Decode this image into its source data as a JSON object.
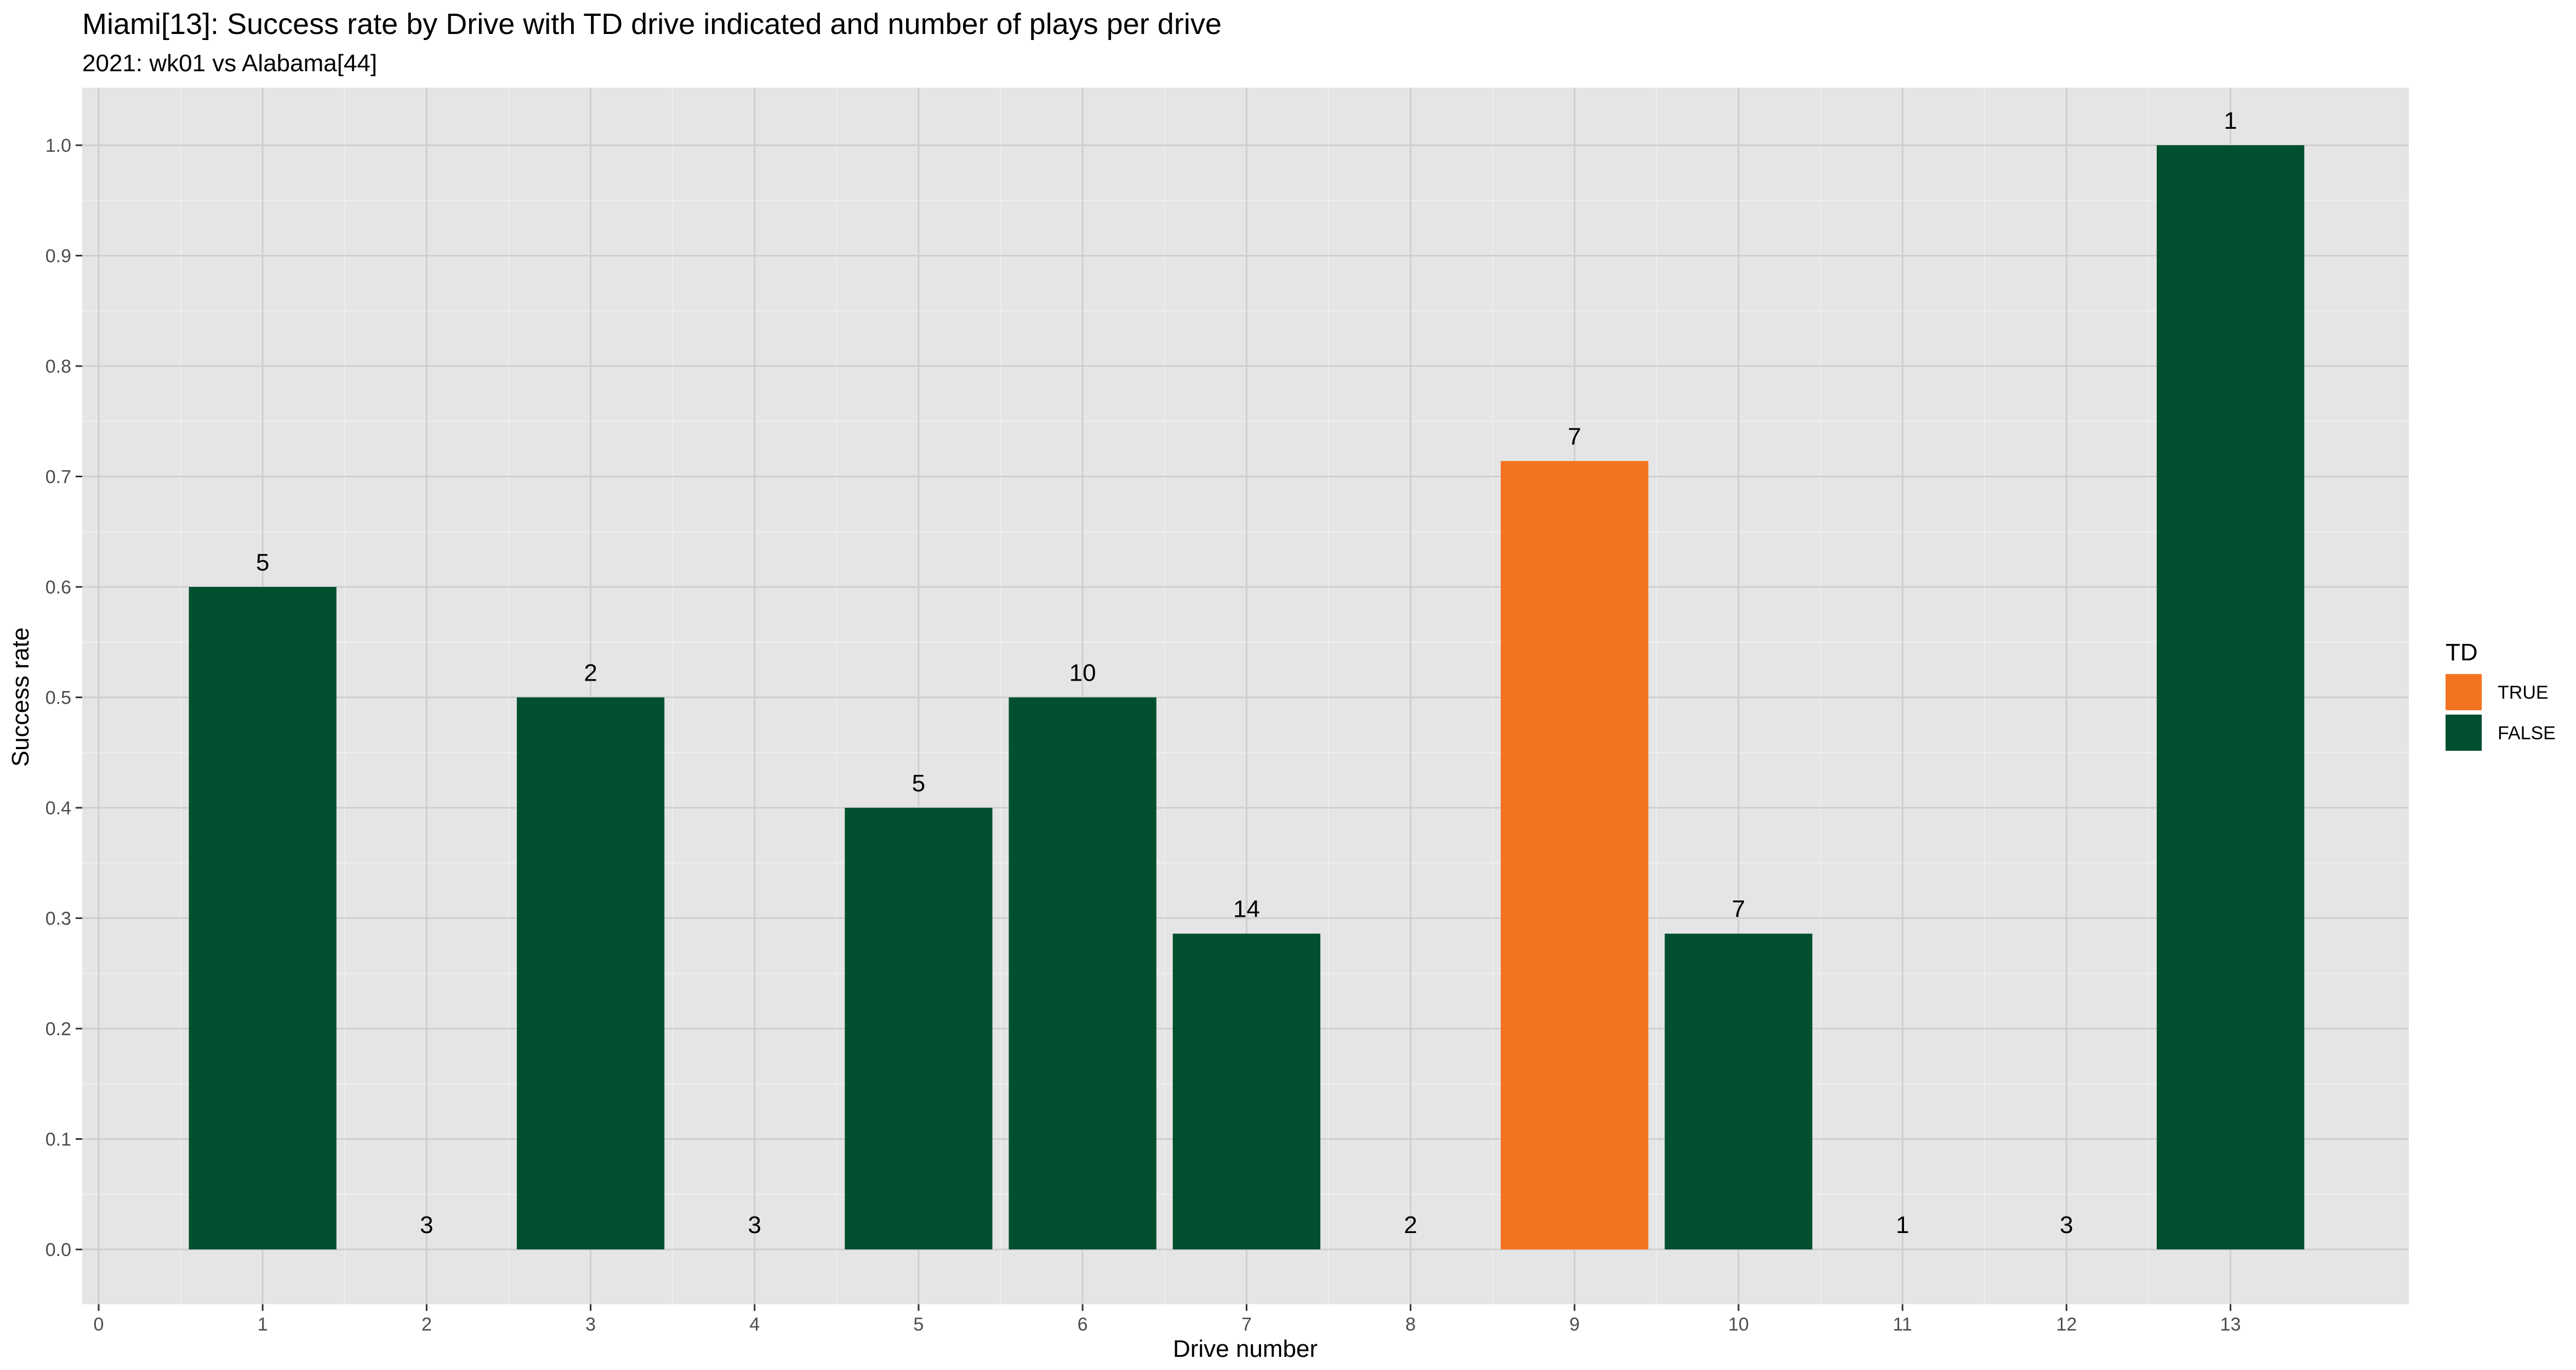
{
  "chart_data": {
    "type": "bar",
    "title": "Miami[13]: Success rate by Drive with TD drive indicated and number of plays per drive",
    "subtitle": "2021: wk01 vs Alabama[44]",
    "xlabel": "Drive number",
    "ylabel": "Success rate",
    "xlim": [
      0,
      14
    ],
    "ylim": [
      0,
      1.0
    ],
    "x_ticks": [
      0,
      1,
      2,
      3,
      4,
      5,
      6,
      7,
      8,
      9,
      10,
      11,
      12,
      13
    ],
    "y_ticks": [
      "0.0",
      "0.1",
      "0.2",
      "0.3",
      "0.4",
      "0.5",
      "0.6",
      "0.7",
      "0.8",
      "0.9",
      "1.0"
    ],
    "grid": true,
    "legend": {
      "title": "TD",
      "position": "right",
      "items": [
        {
          "label": "TRUE",
          "color": "#F47321"
        },
        {
          "label": "FALSE",
          "color": "#005030"
        }
      ]
    },
    "colors": {
      "TRUE": "#F47321",
      "FALSE": "#005030"
    },
    "bars": [
      {
        "drive": 1,
        "success_rate": 0.6,
        "plays": "5",
        "td": "FALSE"
      },
      {
        "drive": 2,
        "success_rate": 0.0,
        "plays": "3",
        "td": "FALSE"
      },
      {
        "drive": 3,
        "success_rate": 0.5,
        "plays": "2",
        "td": "FALSE"
      },
      {
        "drive": 4,
        "success_rate": 0.0,
        "plays": "3",
        "td": "FALSE"
      },
      {
        "drive": 5,
        "success_rate": 0.4,
        "plays": "5",
        "td": "FALSE"
      },
      {
        "drive": 6,
        "success_rate": 0.5,
        "plays": "10",
        "td": "FALSE"
      },
      {
        "drive": 7,
        "success_rate": 0.286,
        "plays": "14",
        "td": "FALSE"
      },
      {
        "drive": 8,
        "success_rate": 0.0,
        "plays": "2",
        "td": "FALSE"
      },
      {
        "drive": 9,
        "success_rate": 0.714,
        "plays": "7",
        "td": "TRUE"
      },
      {
        "drive": 10,
        "success_rate": 0.286,
        "plays": "7",
        "td": "FALSE"
      },
      {
        "drive": 11,
        "success_rate": 0.0,
        "plays": "1",
        "td": "FALSE"
      },
      {
        "drive": 12,
        "success_rate": 0.0,
        "plays": "3",
        "td": "FALSE"
      },
      {
        "drive": 13,
        "success_rate": 1.0,
        "plays": "1",
        "td": "FALSE"
      }
    ]
  }
}
